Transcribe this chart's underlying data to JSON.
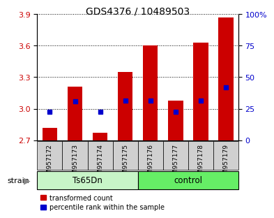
{
  "title": "GDS4376 / 10489503",
  "samples": [
    "GSM957172",
    "GSM957173",
    "GSM957174",
    "GSM957175",
    "GSM957176",
    "GSM957177",
    "GSM957178",
    "GSM957179"
  ],
  "red_values": [
    2.82,
    3.21,
    2.77,
    3.35,
    3.6,
    3.08,
    3.63,
    3.87
  ],
  "blue_values": [
    2.97,
    3.07,
    2.97,
    3.08,
    3.08,
    2.97,
    3.08,
    3.2
  ],
  "bar_bottom": 2.7,
  "ylim_left": [
    2.7,
    3.9
  ],
  "yticks_left": [
    2.7,
    3.0,
    3.3,
    3.6,
    3.9
  ],
  "ylim_right": [
    0,
    100
  ],
  "yticks_right": [
    0,
    25,
    50,
    75,
    100
  ],
  "yticklabels_right": [
    "0",
    "25",
    "50",
    "75",
    "100%"
  ],
  "group1_label": "Ts65Dn",
  "group1_color": "#c8f5c8",
  "group2_label": "control",
  "group2_color": "#66ee66",
  "strain_label": "strain",
  "red_color": "#cc0000",
  "blue_color": "#0000cc",
  "bar_width": 0.6,
  "legend1": "transformed count",
  "legend2": "percentile rank within the sample",
  "bg_xticklabel": "#d0d0d0",
  "title_fontsize": 10,
  "tick_fontsize": 8,
  "label_fontsize": 7.5
}
